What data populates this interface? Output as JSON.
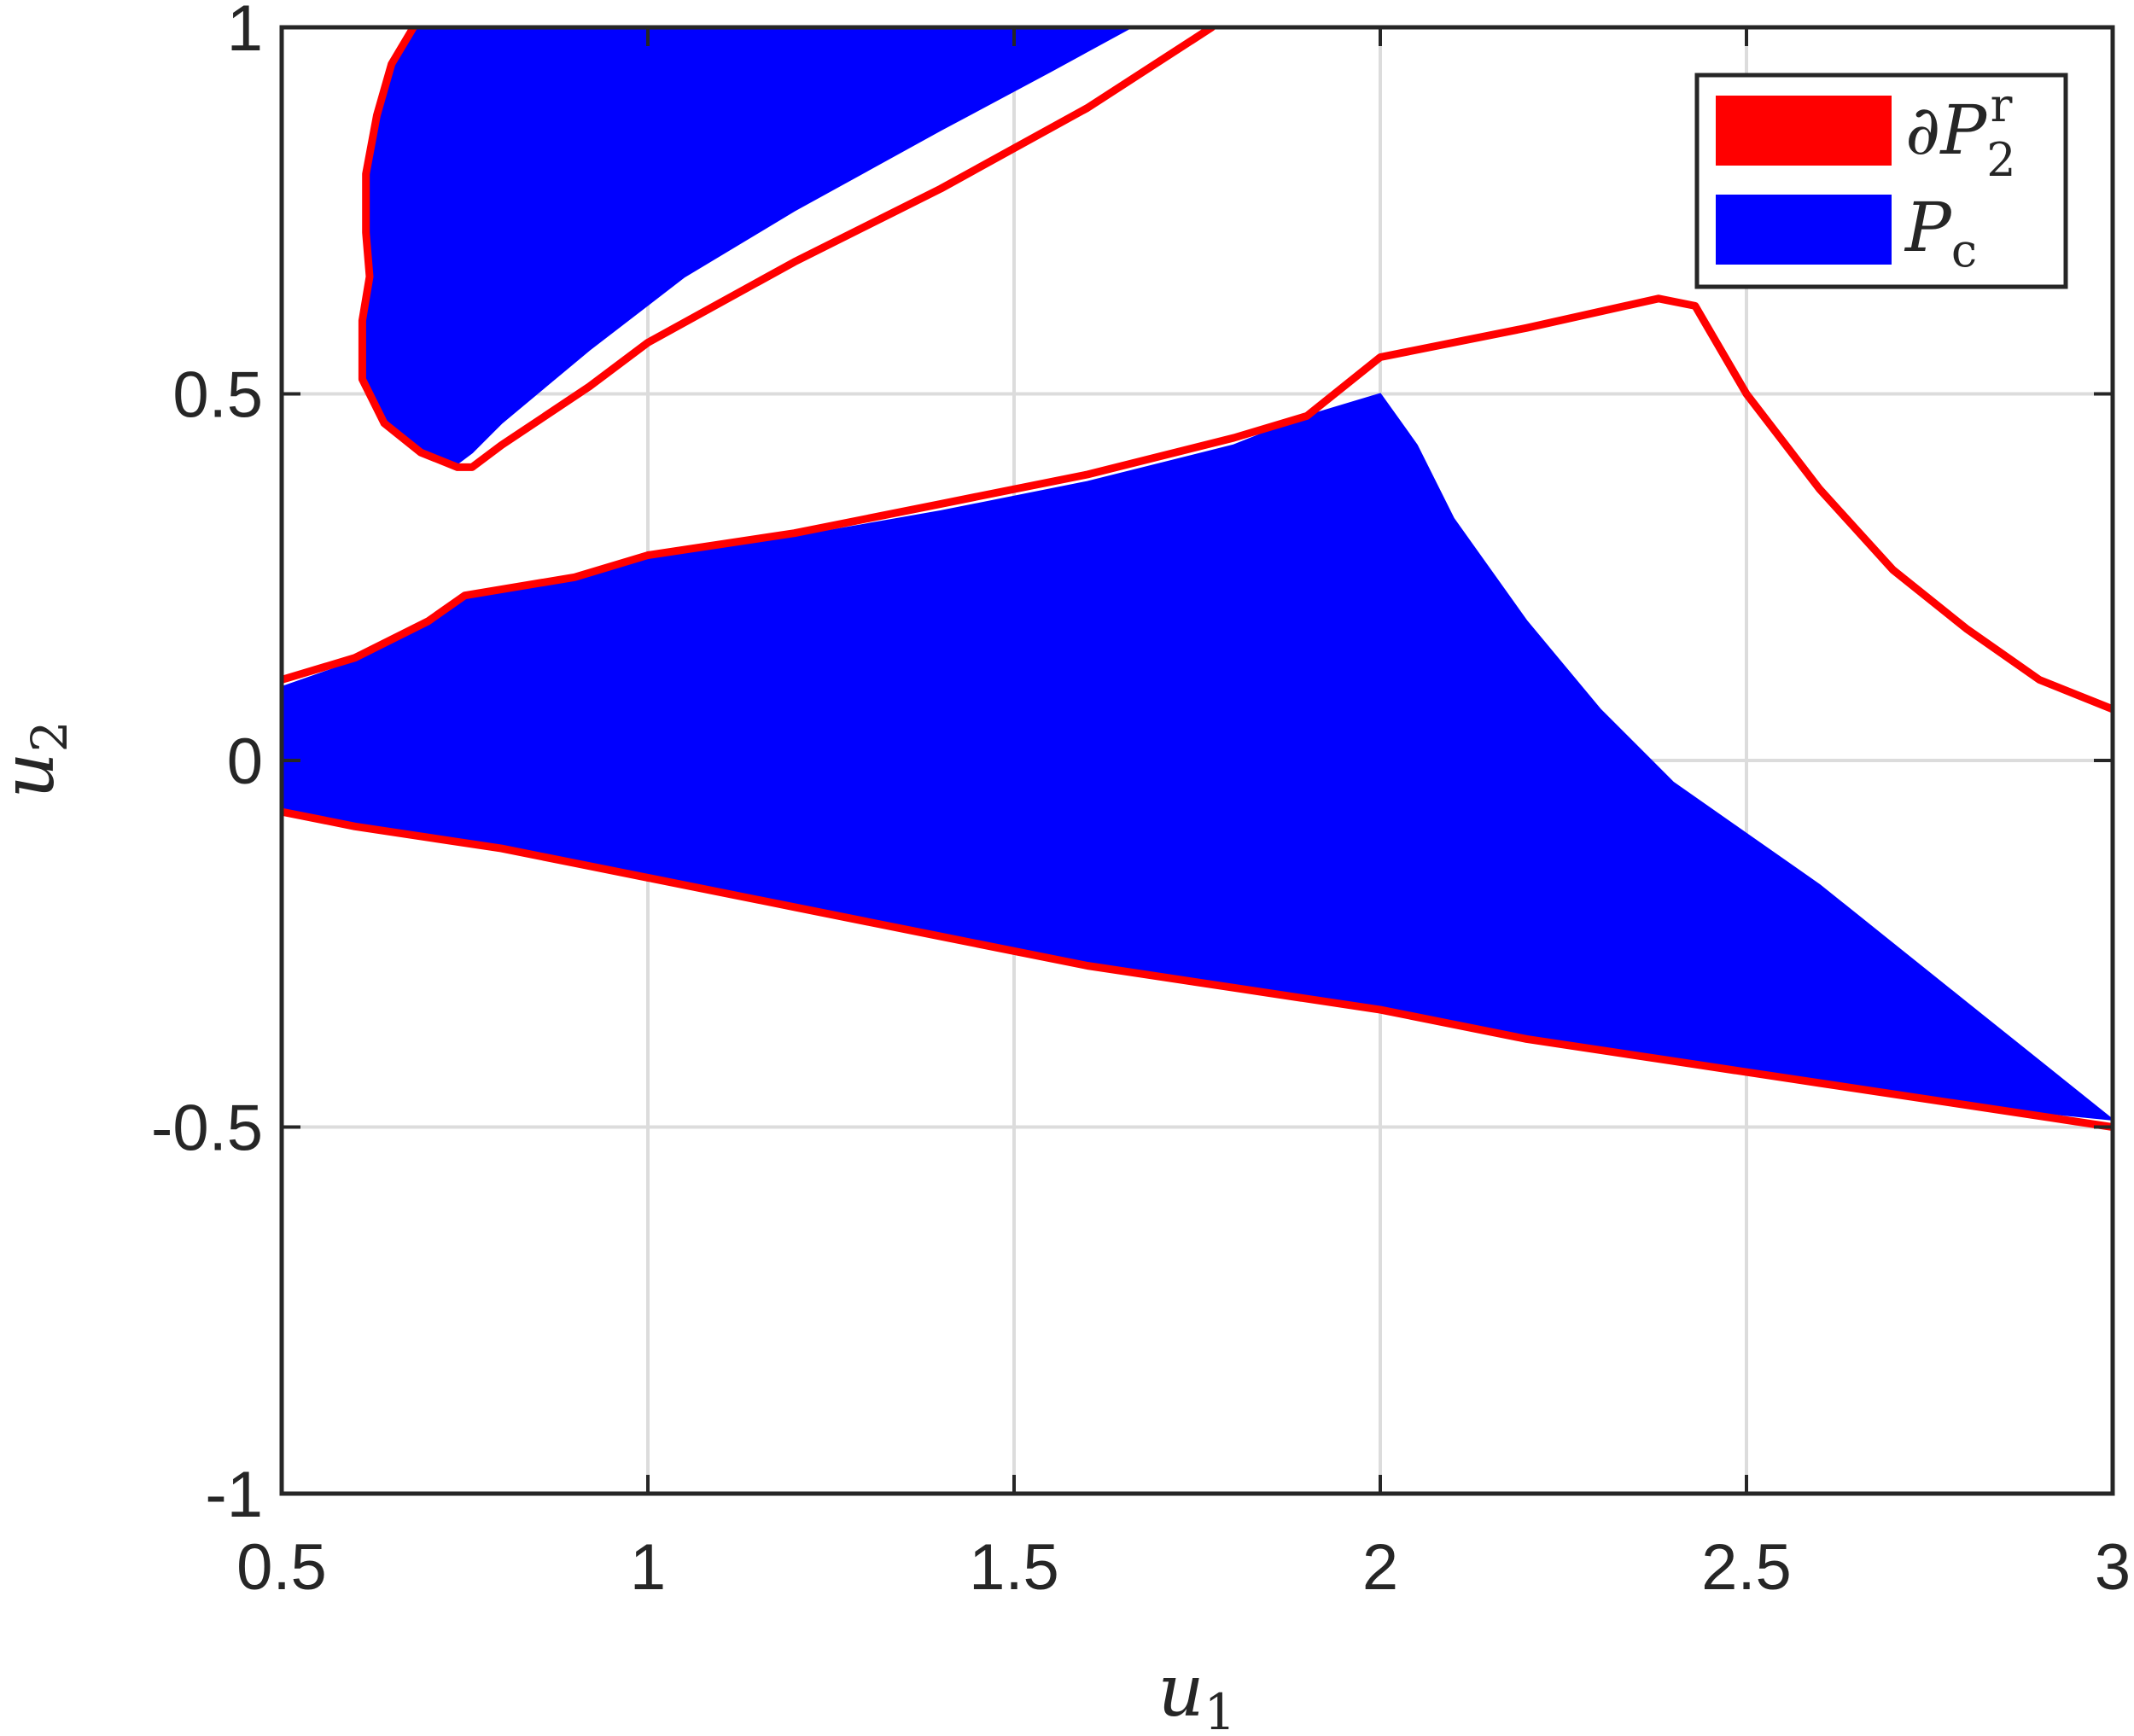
{
  "chart_data": {
    "type": "area",
    "xlim": [
      0.5,
      3
    ],
    "ylim": [
      -1,
      1
    ],
    "grid": true,
    "legend_location": "top-right",
    "x_ticks": [
      "0.5",
      "1",
      "1.5",
      "2",
      "2.5",
      "3"
    ],
    "y_ticks": [
      "-1",
      "-0.5",
      "0",
      "0.5",
      "1"
    ],
    "x_tick_values": [
      0.5,
      1,
      1.5,
      2,
      2.5,
      3
    ],
    "y_tick_values": [
      -1,
      -0.5,
      0,
      0.5,
      1
    ],
    "xlabel": {
      "main": "u",
      "sub": "1"
    },
    "ylabel": {
      "main": "u",
      "sub": "2"
    },
    "series": [
      {
        "name": {
          "prefix": "∂",
          "main": "P",
          "sub": "2",
          "sup": "r"
        },
        "color": "#ff0000",
        "kind": "boundary",
        "curves": [
          [
            [
              0.68,
              1.0
            ],
            [
              0.65,
              0.95
            ],
            [
              0.63,
              0.88
            ],
            [
              0.615,
              0.8
            ],
            [
              0.615,
              0.72
            ],
            [
              0.62,
              0.66
            ],
            [
              0.61,
              0.6
            ],
            [
              0.61,
              0.52
            ],
            [
              0.64,
              0.46
            ],
            [
              0.69,
              0.42
            ],
            [
              0.74,
              0.4
            ],
            [
              0.76,
              0.4
            ],
            [
              0.8,
              0.43
            ],
            [
              0.86,
              0.47
            ],
            [
              0.92,
              0.51
            ],
            [
              1.0,
              0.57
            ],
            [
              1.2,
              0.68
            ],
            [
              1.4,
              0.78
            ],
            [
              1.6,
              0.89
            ],
            [
              1.77,
              1.0
            ]
          ],
          [
            [
              0.5,
              0.11
            ],
            [
              0.6,
              0.14
            ],
            [
              0.7,
              0.19
            ],
            [
              0.75,
              0.225
            ],
            [
              0.9,
              0.25
            ],
            [
              1.0,
              0.28
            ],
            [
              1.2,
              0.31
            ],
            [
              1.4,
              0.35
            ],
            [
              1.6,
              0.39
            ],
            [
              1.8,
              0.44
            ],
            [
              1.9,
              0.47
            ],
            [
              2.0,
              0.55
            ],
            [
              2.2,
              0.59
            ],
            [
              2.38,
              0.63
            ],
            [
              2.43,
              0.62
            ],
            [
              2.5,
              0.5
            ],
            [
              2.6,
              0.37
            ],
            [
              2.7,
              0.26
            ],
            [
              2.8,
              0.18
            ],
            [
              2.9,
              0.11
            ],
            [
              3.0,
              0.07
            ]
          ],
          [
            [
              0.5,
              -0.07
            ],
            [
              0.6,
              -0.09
            ],
            [
              0.8,
              -0.12
            ],
            [
              1.0,
              -0.16
            ],
            [
              1.2,
              -0.2
            ],
            [
              1.4,
              -0.24
            ],
            [
              1.6,
              -0.28
            ],
            [
              1.8,
              -0.31
            ],
            [
              2.0,
              -0.34
            ],
            [
              2.2,
              -0.38
            ],
            [
              2.4,
              -0.41
            ],
            [
              2.6,
              -0.44
            ],
            [
              2.8,
              -0.47
            ],
            [
              3.0,
              -0.5
            ]
          ]
        ]
      },
      {
        "name": {
          "main": "P",
          "sub": "c"
        },
        "color": "#0000ff",
        "kind": "region",
        "regions": [
          [
            [
              0.68,
              1.0
            ],
            [
              1.66,
              1.0
            ],
            [
              1.55,
              0.94
            ],
            [
              1.4,
              0.86
            ],
            [
              1.2,
              0.75
            ],
            [
              1.05,
              0.66
            ],
            [
              0.92,
              0.56
            ],
            [
              0.86,
              0.51
            ],
            [
              0.8,
              0.46
            ],
            [
              0.76,
              0.42
            ],
            [
              0.74,
              0.405
            ],
            [
              0.69,
              0.42
            ],
            [
              0.64,
              0.46
            ],
            [
              0.615,
              0.52
            ],
            [
              0.615,
              0.6
            ],
            [
              0.625,
              0.66
            ],
            [
              0.62,
              0.72
            ],
            [
              0.62,
              0.8
            ],
            [
              0.635,
              0.88
            ],
            [
              0.655,
              0.95
            ]
          ],
          [
            [
              0.5,
              0.1
            ],
            [
              0.6,
              0.135
            ],
            [
              0.7,
              0.185
            ],
            [
              0.75,
              0.22
            ],
            [
              0.9,
              0.245
            ],
            [
              1.0,
              0.275
            ],
            [
              1.2,
              0.305
            ],
            [
              1.4,
              0.34
            ],
            [
              1.6,
              0.38
            ],
            [
              1.8,
              0.43
            ],
            [
              1.9,
              0.47
            ],
            [
              2.0,
              0.5
            ],
            [
              2.05,
              0.43
            ],
            [
              2.1,
              0.33
            ],
            [
              2.2,
              0.19
            ],
            [
              2.3,
              0.07
            ],
            [
              2.4,
              -0.03
            ],
            [
              2.5,
              -0.1
            ],
            [
              2.6,
              -0.17
            ],
            [
              2.7,
              -0.25
            ],
            [
              2.8,
              -0.33
            ],
            [
              2.9,
              -0.41
            ],
            [
              3.0,
              -0.49
            ],
            [
              2.8,
              -0.47
            ],
            [
              2.6,
              -0.44
            ],
            [
              2.4,
              -0.41
            ],
            [
              2.2,
              -0.38
            ],
            [
              2.0,
              -0.34
            ],
            [
              1.8,
              -0.31
            ],
            [
              1.6,
              -0.28
            ],
            [
              1.4,
              -0.24
            ],
            [
              1.2,
              -0.2
            ],
            [
              1.0,
              -0.16
            ],
            [
              0.8,
              -0.12
            ],
            [
              0.6,
              -0.09
            ],
            [
              0.5,
              -0.07
            ]
          ]
        ]
      }
    ]
  }
}
